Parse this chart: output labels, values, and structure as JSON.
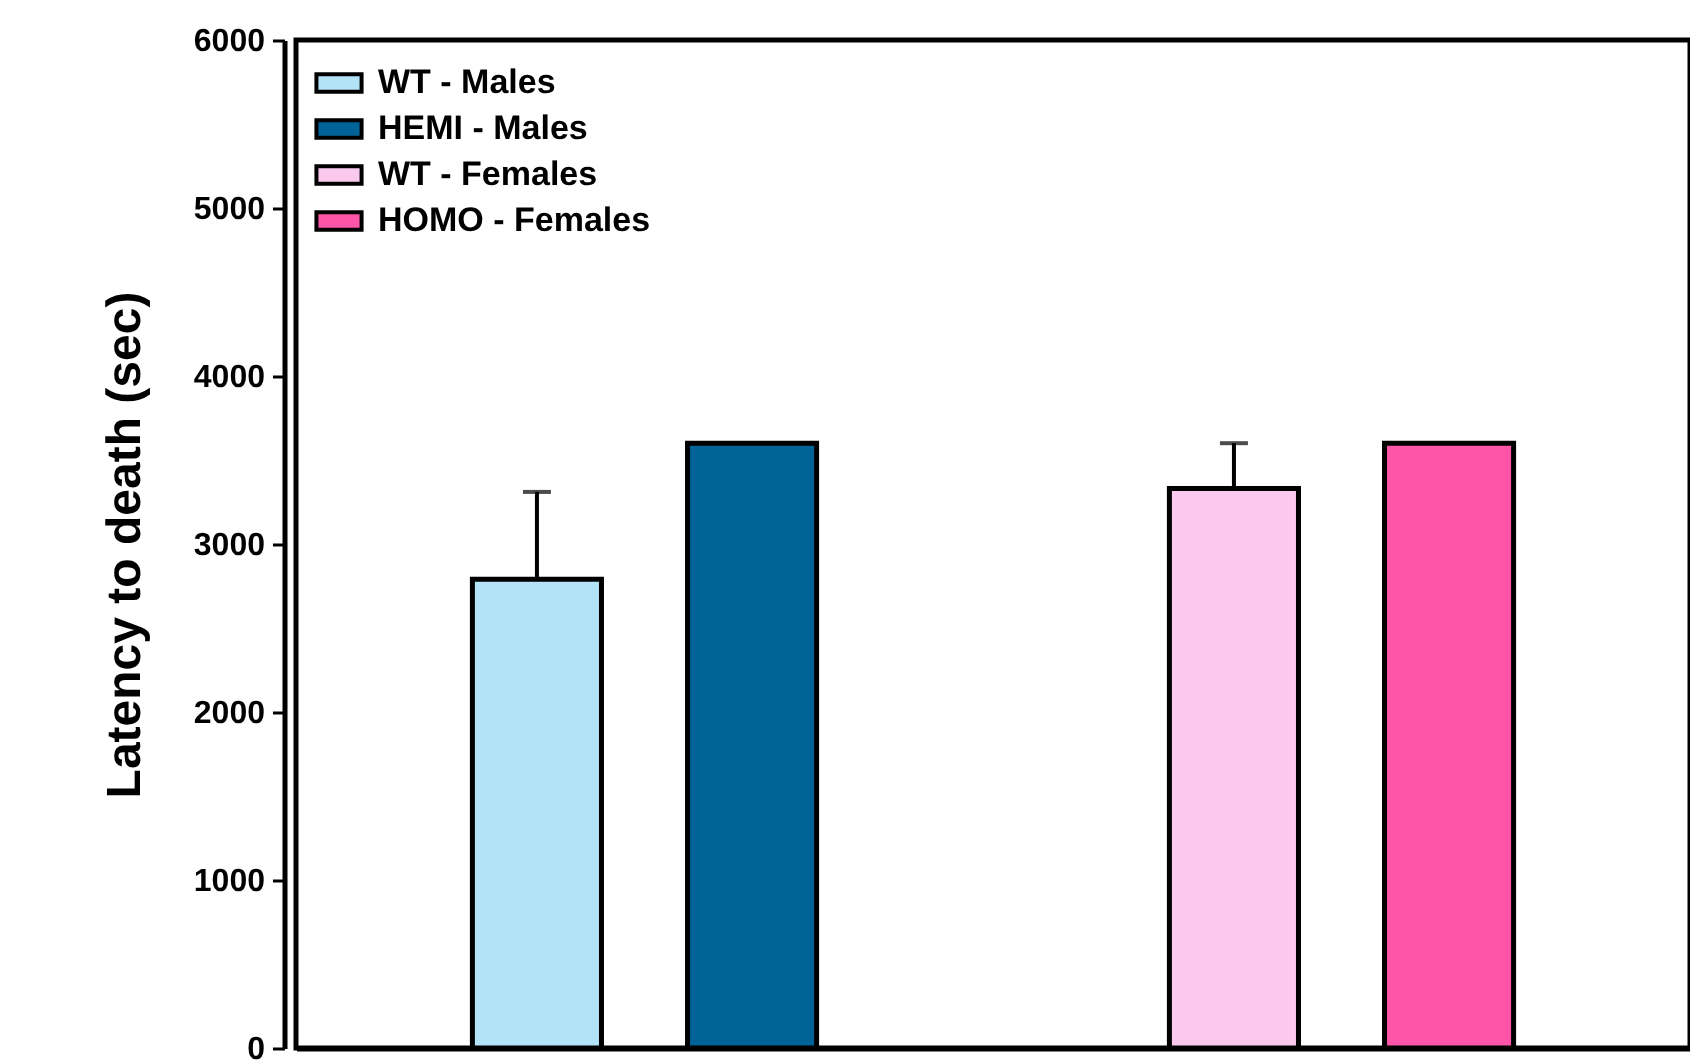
{
  "chart_data": {
    "type": "bar",
    "ylabel": "Latency to death (sec)",
    "categories": [
      null,
      null
    ],
    "series": [
      {
        "name": "WT - Males",
        "color": "#b3e3f6",
        "values": [
          2790,
          null
        ],
        "errors": [
          520,
          null
        ]
      },
      {
        "name": "HEMI - Males",
        "color": "#006398",
        "values": [
          3600,
          null
        ]
      },
      {
        "name": "WT - Females",
        "color": "#fbc8ee",
        "values": [
          null,
          3330
        ],
        "errors": [
          null,
          270
        ]
      },
      {
        "name": "HOMO - Females",
        "color": "#ff55a8",
        "values": [
          null,
          3600
        ]
      }
    ],
    "ylim": [
      0,
      6000
    ],
    "yticks": [
      0,
      1000,
      2000,
      3000,
      4000,
      5000,
      6000
    ],
    "grid": false,
    "legend": "top left",
    "tick_labels": "y"
  }
}
